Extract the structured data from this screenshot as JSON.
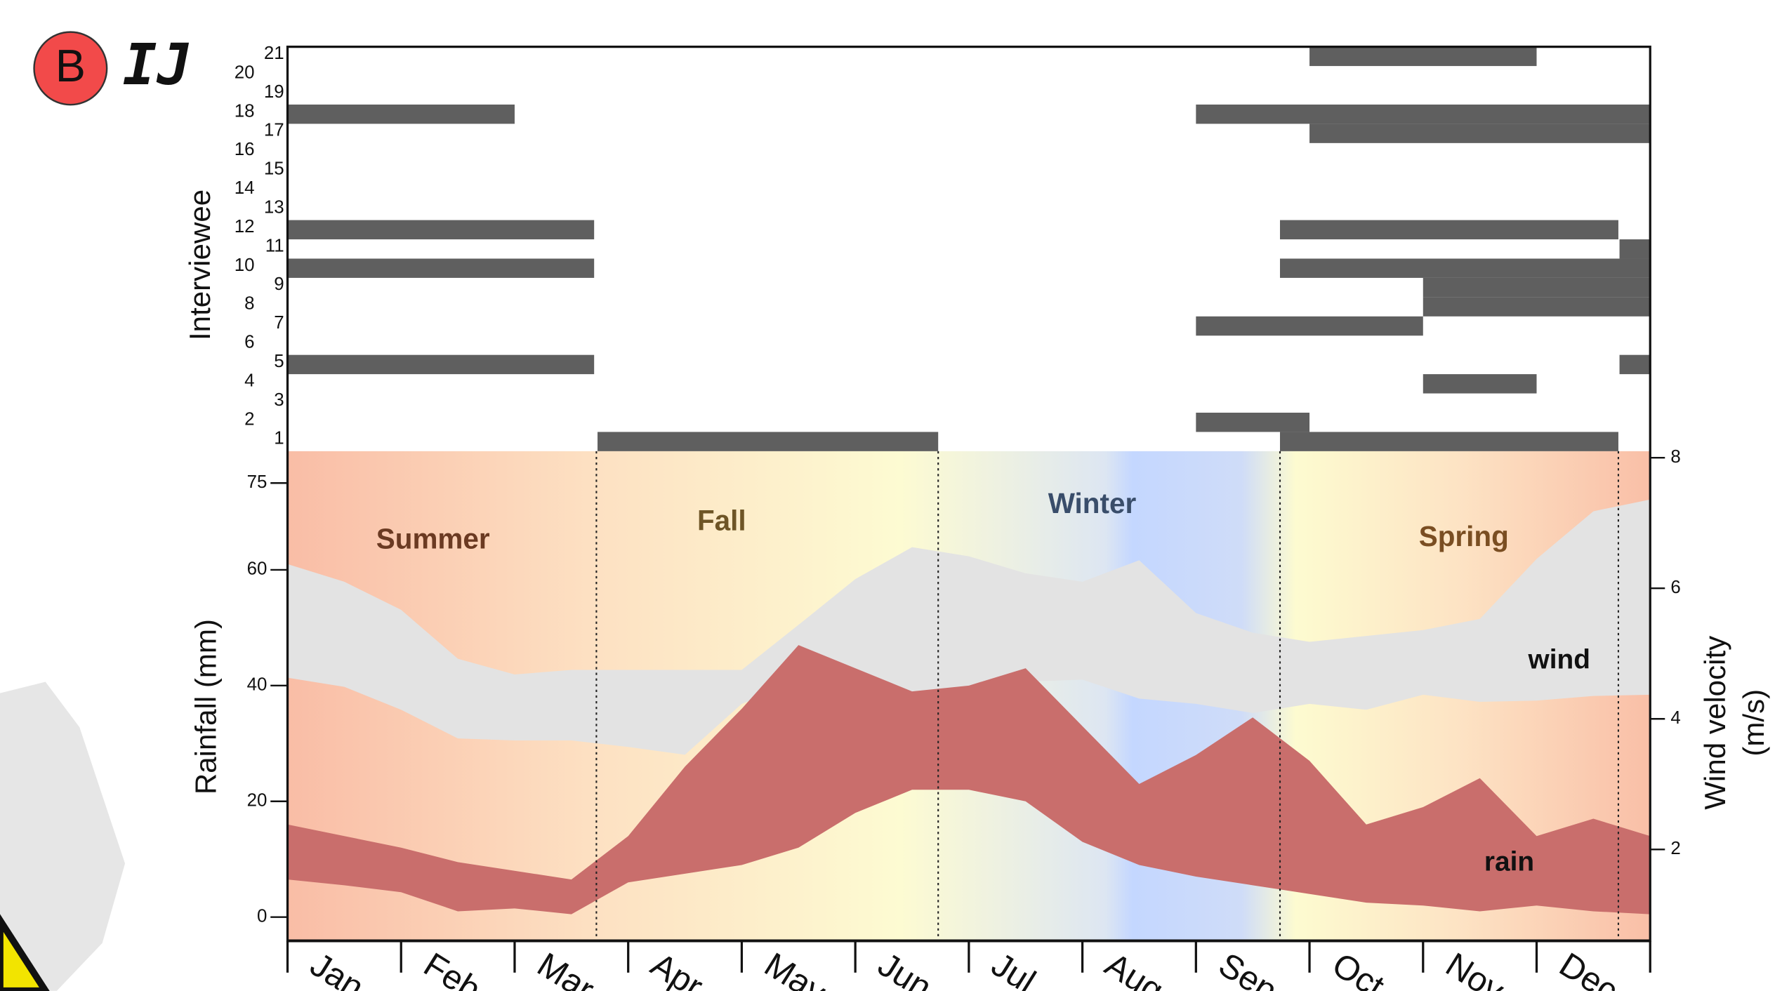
{
  "panel_label": "B",
  "logo_text": "IJ",
  "chart_data": [
    {
      "type": "gantt",
      "ylabel": "Interviewee",
      "xlim": [
        0,
        12
      ],
      "ylim": [
        0.5,
        21.5
      ],
      "yticks": [
        1,
        2,
        3,
        4,
        5,
        6,
        7,
        8,
        9,
        10,
        11,
        12,
        13,
        14,
        15,
        16,
        17,
        18,
        19,
        20,
        21
      ],
      "color": "#5f5f5f",
      "bars": [
        {
          "interviewee": 1,
          "start": 2.73,
          "end": 5.73
        },
        {
          "interviewee": 1,
          "start": 8.74,
          "end": 11.72
        },
        {
          "interviewee": 2,
          "start": 8.0,
          "end": 9.0
        },
        {
          "interviewee": 4,
          "start": 10.0,
          "end": 11.0
        },
        {
          "interviewee": 5,
          "start": 0,
          "end": 2.7
        },
        {
          "interviewee": 5,
          "start": 11.73,
          "end": 12
        },
        {
          "interviewee": 7,
          "start": 8.0,
          "end": 10.0
        },
        {
          "interviewee": 8,
          "start": 10.0,
          "end": 12
        },
        {
          "interviewee": 9,
          "start": 10.0,
          "end": 12
        },
        {
          "interviewee": 10,
          "start": 0,
          "end": 2.7
        },
        {
          "interviewee": 10,
          "start": 8.74,
          "end": 12
        },
        {
          "interviewee": 11,
          "start": 11.73,
          "end": 12
        },
        {
          "interviewee": 12,
          "start": 0,
          "end": 2.7
        },
        {
          "interviewee": 12,
          "start": 8.74,
          "end": 11.72
        },
        {
          "interviewee": 17,
          "start": 9.0,
          "end": 12
        },
        {
          "interviewee": 18,
          "start": 0,
          "end": 2.0
        },
        {
          "interviewee": 18,
          "start": 8.0,
          "end": 12
        },
        {
          "interviewee": 21,
          "start": 9.0,
          "end": 11.0
        }
      ]
    },
    {
      "type": "band",
      "ylabel": "Rainfall (mm)",
      "y2label": [
        "Wind velocity",
        "(m/s)"
      ],
      "categories": [
        "Jan",
        "Feb",
        "Mar",
        "Apr",
        "May",
        "Jun",
        "Jul",
        "Aug",
        "Sep",
        "Oct",
        "Nov",
        "Dec"
      ],
      "xlim": [
        0,
        12
      ],
      "x": [
        0,
        0.5,
        1,
        1.5,
        2,
        2.5,
        3,
        3.5,
        4,
        4.5,
        5,
        5.5,
        6,
        6.5,
        7,
        7.5,
        8,
        8.5,
        9,
        9.5,
        10,
        10.5,
        11,
        11.5,
        12
      ],
      "ylim": [
        -4.1,
        80.5
      ],
      "yticks": [
        0,
        20,
        40,
        60,
        75
      ],
      "y2lim": [
        0.6,
        8.1
      ],
      "y2ticks": [
        2,
        4,
        6,
        8
      ],
      "seasons": [
        "Summer",
        "Fall",
        "Winter",
        "Spring"
      ],
      "season_boundaries": [
        2.72,
        5.73,
        8.74,
        11.72
      ],
      "series": [
        {
          "name": "wind",
          "color": "#e3e3e3",
          "axis": "y2",
          "upper": [
            6.37,
            6.1,
            5.67,
            4.92,
            4.68,
            4.75,
            4.75,
            4.75,
            4.75,
            5.44,
            6.14,
            6.63,
            6.49,
            6.23,
            6.1,
            6.43,
            5.62,
            5.32,
            5.18,
            5.27,
            5.36,
            5.53,
            6.45,
            7.18,
            7.36
          ],
          "lower": [
            4.63,
            4.49,
            4.14,
            3.7,
            3.67,
            3.67,
            3.57,
            3.45,
            4.23,
            4.57,
            4.5,
            4.4,
            4.5,
            4.57,
            4.6,
            4.31,
            4.23,
            4.09,
            4.23,
            4.14,
            4.37,
            4.26,
            4.28,
            4.35,
            4.37
          ]
        },
        {
          "name": "rain",
          "color": "#c96e6c",
          "upper": [
            16,
            14,
            12,
            9.5,
            8,
            6.5,
            14,
            26,
            36,
            47,
            43,
            39,
            40,
            43,
            33,
            23,
            28,
            34.5,
            27,
            16,
            19,
            24,
            14,
            17,
            14
          ],
          "lower": [
            6.5,
            5.5,
            4.3,
            1,
            1.5,
            0.5,
            6,
            7.5,
            9,
            12,
            18,
            22,
            22,
            20,
            13,
            9,
            7,
            5.5,
            4,
            2.5,
            2,
            1,
            2,
            1,
            0.5
          ]
        }
      ]
    }
  ]
}
